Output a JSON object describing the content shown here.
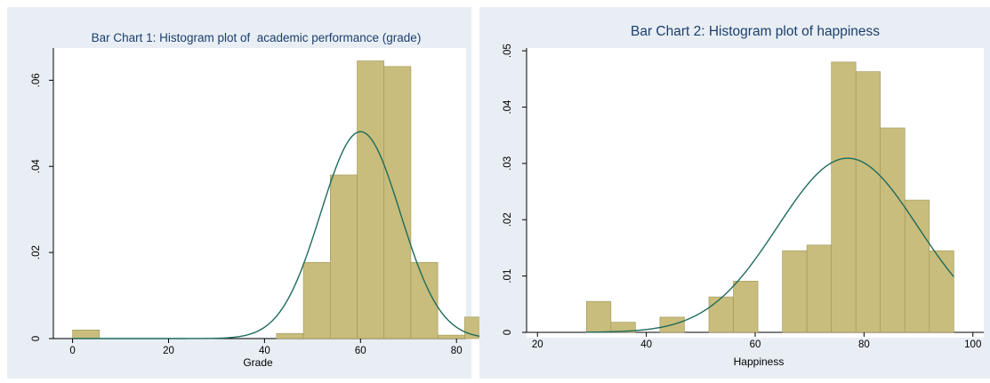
{
  "chart_data": [
    {
      "type": "bar",
      "title": "Bar Chart 1: Histogram plot of  academic performance (grade)",
      "xlabel": "Grade",
      "ylabel": "",
      "xlim": [
        -4,
        82
      ],
      "ylim": [
        0,
        0.0675
      ],
      "xticks": [
        0,
        20,
        40,
        60,
        80
      ],
      "xtick_labels": [
        "0",
        "20",
        "40",
        "60",
        "80"
      ],
      "yticks": [
        0,
        0.02,
        0.04,
        0.06
      ],
      "ytick_labels": [
        "0",
        ".02",
        ".04",
        ".06"
      ],
      "bin_width": 5.6,
      "bins": [
        {
          "x0": 0,
          "value": 0.002
        },
        {
          "x0": 42.5,
          "value": 0.0012
        },
        {
          "x0": 48.1,
          "value": 0.0177
        },
        {
          "x0": 53.7,
          "value": 0.038
        },
        {
          "x0": 59.3,
          "value": 0.0645
        },
        {
          "x0": 64.9,
          "value": 0.0632
        },
        {
          "x0": 70.5,
          "value": 0.0177
        },
        {
          "x0": 76.1,
          "value": 0.0008
        },
        {
          "x0": 81.7,
          "value": 0.005
        }
      ],
      "normal_curve": {
        "mean": 60,
        "sd": 8.3
      },
      "colors": {
        "bar": "#c8bd7c",
        "bar_edge": "#9e9458",
        "curve": "#1f6b5c",
        "outer_bg": "#e8eef4",
        "plot_bg": "#ffffff",
        "title": "#1c3e6e"
      }
    },
    {
      "type": "bar",
      "title": "Bar Chart 2: Histogram plot of happiness",
      "xlabel": "Happiness",
      "ylabel": "",
      "xlim": [
        18,
        102
      ],
      "ylim": [
        0,
        0.0505
      ],
      "xticks": [
        20,
        40,
        60,
        80,
        100
      ],
      "xtick_labels": [
        "20",
        "40",
        "60",
        "80",
        "100"
      ],
      "yticks": [
        0,
        0.01,
        0.02,
        0.03,
        0.04,
        0.05
      ],
      "ytick_labels": [
        "0",
        ".01",
        ".02",
        ".03",
        ".04",
        ".05"
      ],
      "bin_width": 4.5,
      "bins": [
        {
          "x0": 29,
          "value": 0.0055
        },
        {
          "x0": 33.5,
          "value": 0.0018
        },
        {
          "x0": 38,
          "value": 0
        },
        {
          "x0": 42.5,
          "value": 0.0027
        },
        {
          "x0": 47,
          "value": 0
        },
        {
          "x0": 51.5,
          "value": 0.0063
        },
        {
          "x0": 56,
          "value": 0.0091
        },
        {
          "x0": 60.5,
          "value": 0
        },
        {
          "x0": 65,
          "value": 0.0145
        },
        {
          "x0": 69.5,
          "value": 0.0155
        },
        {
          "x0": 74,
          "value": 0.048
        },
        {
          "x0": 78.5,
          "value": 0.0463
        },
        {
          "x0": 83,
          "value": 0.0363
        },
        {
          "x0": 87.5,
          "value": 0.0235
        },
        {
          "x0": 92,
          "value": 0.0145
        }
      ],
      "normal_curve": {
        "mean": 77,
        "sd": 12.9
      },
      "colors": {
        "bar": "#c8bd7c",
        "bar_edge": "#9e9458",
        "curve": "#1f6b5c",
        "outer_bg": "#e8eef4",
        "plot_bg": "#ffffff",
        "title": "#1c3e6e"
      }
    }
  ]
}
